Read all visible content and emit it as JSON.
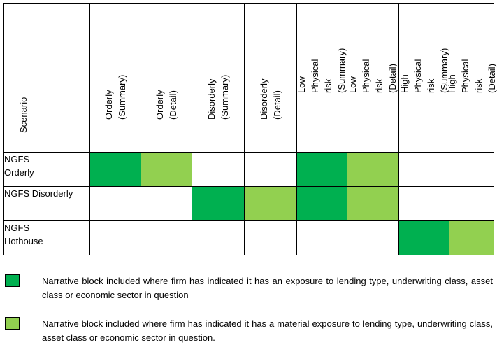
{
  "colors": {
    "dark_green": "#00b050",
    "light_green": "#92d050"
  },
  "table": {
    "scenario_header": "Scenario",
    "columns": [
      "Orderly\n(Summary)",
      "Orderly\n(Detail)",
      "Disorderly (Summary)",
      "Disorderly\n(Detail)",
      "Low Physical risk\n(Summary)",
      "Low Physical risk\n(Detail)",
      "High Physical risk\n(Summary)",
      "High Physical risk\n(Detail)"
    ],
    "rows": [
      {
        "label": "NGFS\nOrderly",
        "cells": [
          "dark",
          "light",
          "",
          "",
          "dark",
          "light",
          "",
          ""
        ]
      },
      {
        "label": "NGFS Disorderly",
        "cells": [
          "",
          "",
          "dark",
          "light",
          "dark",
          "light",
          "",
          ""
        ]
      },
      {
        "label": "NGFS\nHothouse",
        "cells": [
          "",
          "",
          "",
          "",
          "",
          "",
          "dark",
          "light"
        ]
      }
    ]
  },
  "legend": [
    {
      "swatch": "dark",
      "text": "Narrative block included where firm has indicated it has an exposure to lending type, underwriting class, asset class or economic sector in question"
    },
    {
      "swatch": "light",
      "text": "Narrative block included where firm has indicated it has a material exposure to lending type, underwriting class, asset class or economic sector in question."
    }
  ]
}
